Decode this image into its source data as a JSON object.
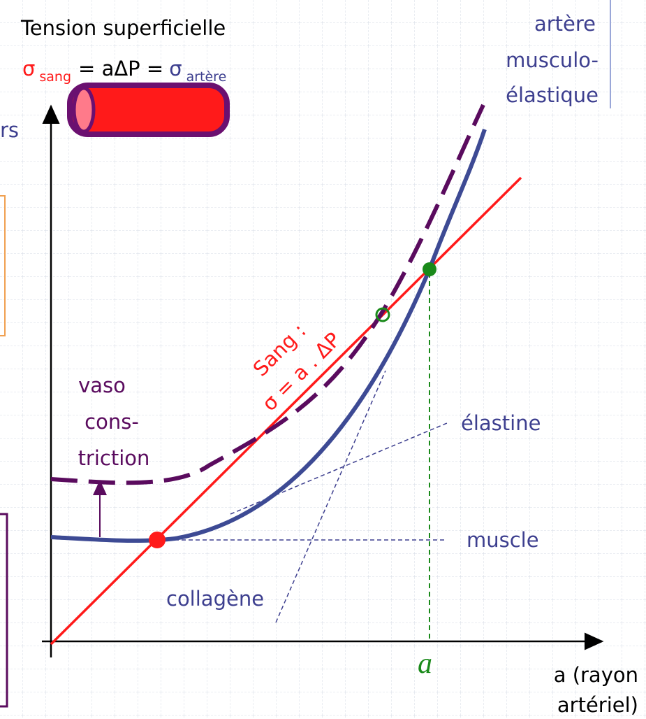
{
  "title": "Tension superficielle",
  "formula": {
    "sigma_left": "σ",
    "sub_left": "sang",
    "middle": "= aΔP =",
    "sigma_right": "σ",
    "sub_right": "artère"
  },
  "artery_label": [
    "artère",
    "musculo-",
    "élastique"
  ],
  "cut_text": "rs",
  "vaso_label": [
    "vaso",
    "cons-",
    "triction"
  ],
  "blood_label": [
    "Sang :",
    "σ = a . ΔP"
  ],
  "curve_labels": {
    "elastine": "élastine",
    "muscle": "muscle",
    "collagene": "collagène"
  },
  "radius_mark": "a",
  "x_axis_label": [
    "a (rayon",
    "artériel)"
  ]
}
